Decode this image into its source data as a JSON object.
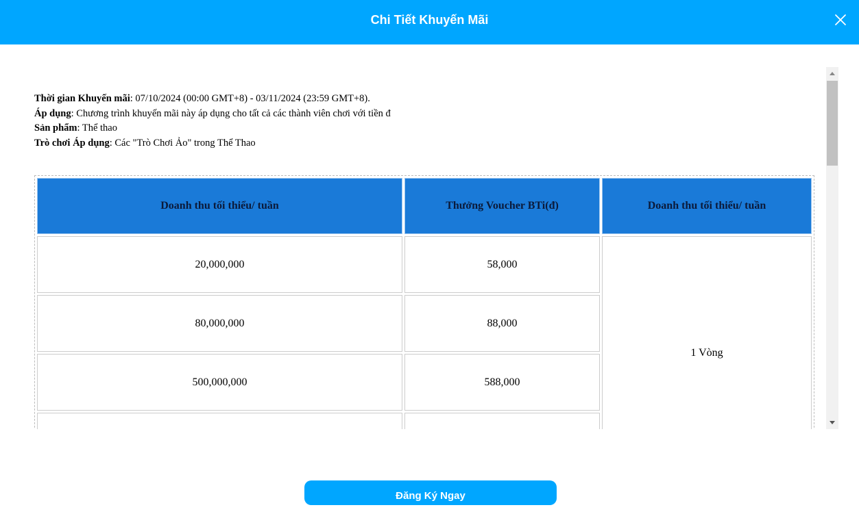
{
  "header": {
    "title": "Chi Tiết Khuyến Mãi",
    "close_icon": "close-icon"
  },
  "info": [
    {
      "label": "Thời gian Khuyến mãi",
      "value": ": 07/10/2024 (00:00 GMT+8) - 03/11/2024 (23:59 GMT+8)."
    },
    {
      "label": "Áp dụng",
      "value": ": Chương trình khuyến mãi này áp dụng cho tất cả các thành viên chơi với tiền đ"
    },
    {
      "label": "Sản phẩm",
      "value": ": Thể thao"
    },
    {
      "label": "Trò chơi Áp dụng",
      "value": ": Các \"Trò Chơi Ảo\" trong Thể Thao"
    }
  ],
  "table": {
    "headers": [
      "Doanh thu tối thiểu/ tuần",
      "Thưởng Voucher BTi(đ)",
      "Doanh thu tối thiểu/ tuần"
    ],
    "rows": [
      [
        "20,000,000",
        "58,000"
      ],
      [
        "80,000,000",
        "88,000"
      ],
      [
        "500,000,000",
        "588,000"
      ],
      [
        "",
        ""
      ]
    ],
    "merged_cell": "1 Vòng"
  },
  "colors": {
    "header": "#00a6ff",
    "table_header": "#1a7ad8"
  },
  "footer": {
    "register_button": "Đăng Ký Ngay"
  }
}
